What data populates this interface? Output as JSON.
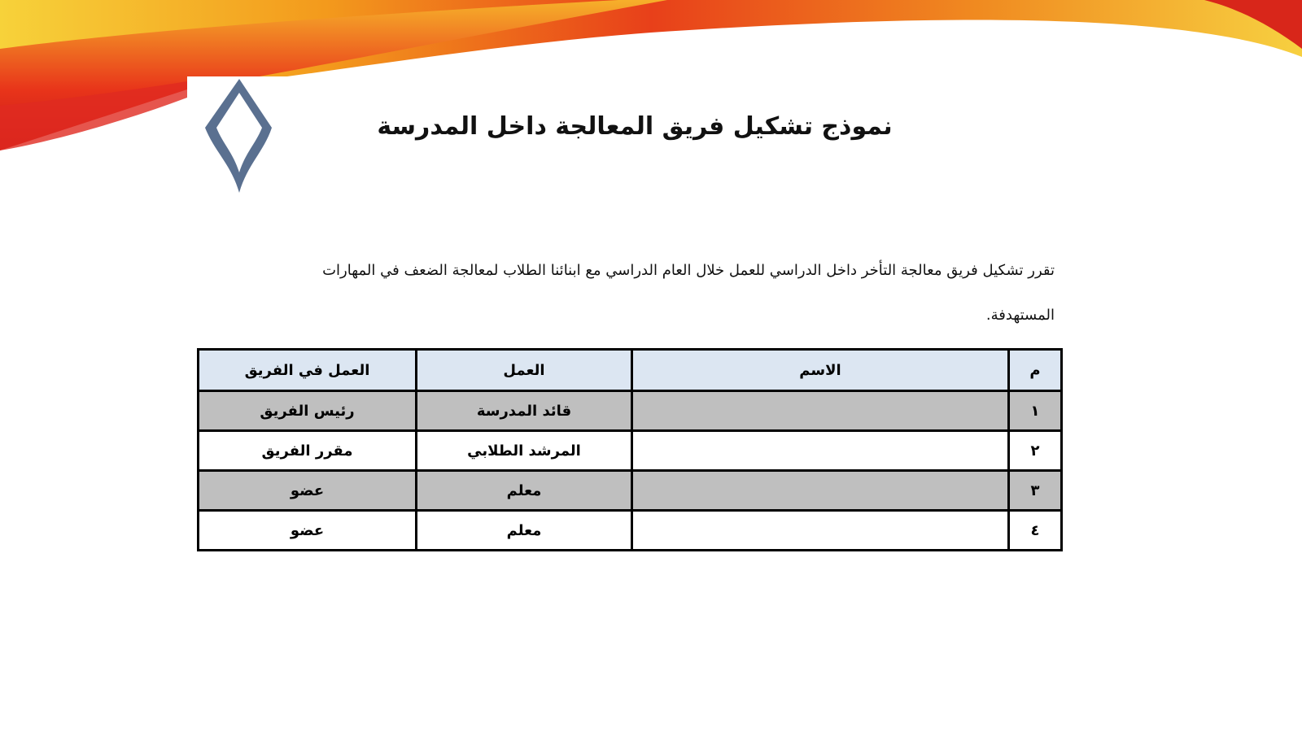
{
  "title": "نموذج تشكيل فريق المعالجة داخل المدرسة",
  "paragraph": "تقرر تشكيل فريق معالجة التأخر داخل الدراسي للعمل خلال العام الدراسي مع ابنائنا الطلاب لمعالجة الضعف في المهارات المستهدفة.",
  "table": {
    "headers": [
      "م",
      "الاسم",
      "العمل",
      "العمل في الفريق"
    ],
    "rows": [
      {
        "num": "١",
        "name": "",
        "job": "قائد المدرسة",
        "role": "رئيس الفريق"
      },
      {
        "num": "٢",
        "name": "",
        "job": "المرشد الطلابي",
        "role": "مقرر الفريق"
      },
      {
        "num": "٣",
        "name": "",
        "job": "معلم",
        "role": "عضو"
      },
      {
        "num": "٤",
        "name": "",
        "job": "معلم",
        "role": "عضو"
      }
    ]
  },
  "colors": {
    "header_bg": "#dce6f2",
    "shaded_row": "#bfbfbf",
    "logo": "#5a7090"
  }
}
